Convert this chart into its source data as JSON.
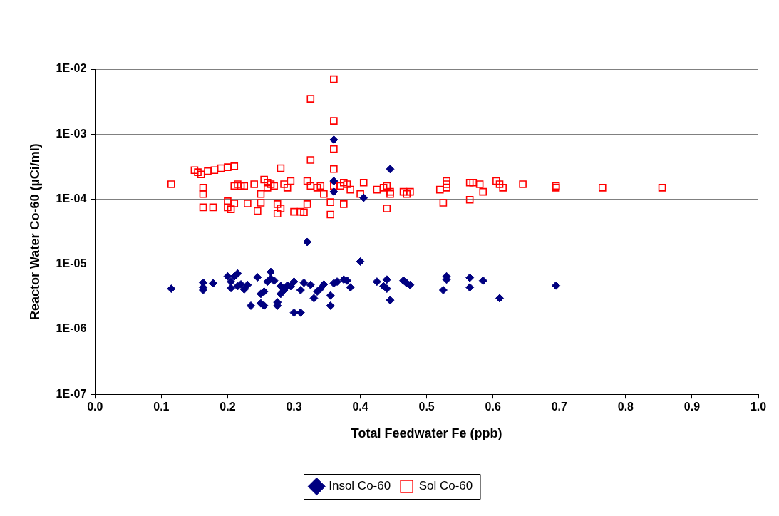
{
  "chart_data": {
    "type": "scatter",
    "xlabel": "Total Feedwater Fe (ppb)",
    "ylabel": "Reactor Water Co-60 (µCi/ml)",
    "log": "y",
    "grid": "y",
    "legend": "bottom",
    "xlim": [
      0,
      1
    ],
    "xticks": [
      {
        "value": 0,
        "label": "0.0"
      },
      {
        "value": 0.1,
        "label": "0.1"
      },
      {
        "value": 0.2,
        "label": "0.2"
      },
      {
        "value": 0.3,
        "label": "0.3"
      },
      {
        "value": 0.4,
        "label": "0.4"
      },
      {
        "value": 0.5,
        "label": "0.5"
      },
      {
        "value": 0.6,
        "label": "0.6"
      },
      {
        "value": 0.7,
        "label": "0.7"
      },
      {
        "value": 0.8,
        "label": "0.8"
      },
      {
        "value": 0.9,
        "label": "0.9"
      },
      {
        "value": 1,
        "label": "1.0"
      }
    ],
    "ylim": [
      1e-07,
      0.01
    ],
    "yticks": [
      {
        "value": 1e-07,
        "label": "1E-07"
      },
      {
        "value": 1e-06,
        "label": "1E-06"
      },
      {
        "value": 1e-05,
        "label": "1E-05"
      },
      {
        "value": 0.0001,
        "label": "1E-04"
      },
      {
        "value": 0.001,
        "label": "1E-03"
      },
      {
        "value": 0.01,
        "label": "1E-02"
      }
    ],
    "series": [
      {
        "name": "Insol Co-60",
        "color": "#000080",
        "marker": "diamond",
        "x": [
          0.115,
          0.163,
          0.163,
          0.163,
          0.178,
          0.2,
          0.205,
          0.205,
          0.21,
          0.215,
          0.215,
          0.22,
          0.225,
          0.23,
          0.235,
          0.245,
          0.25,
          0.25,
          0.255,
          0.255,
          0.26,
          0.265,
          0.265,
          0.27,
          0.275,
          0.275,
          0.28,
          0.28,
          0.285,
          0.29,
          0.295,
          0.3,
          0.3,
          0.31,
          0.31,
          0.315,
          0.32,
          0.325,
          0.33,
          0.335,
          0.34,
          0.345,
          0.355,
          0.355,
          0.36,
          0.36,
          0.36,
          0.36,
          0.365,
          0.375,
          0.38,
          0.385,
          0.405,
          0.4,
          0.425,
          0.435,
          0.44,
          0.44,
          0.445,
          0.445,
          0.465,
          0.47,
          0.475,
          0.525,
          0.53,
          0.53,
          0.565,
          0.565,
          0.585,
          0.61,
          0.695
        ],
        "values": [
          4.2e-06,
          5.2e-06,
          4.4e-06,
          4e-06,
          5.1e-06,
          6.5e-06,
          5.4e-06,
          4.3e-06,
          6.5e-06,
          7.2e-06,
          4.6e-06,
          4.9e-06,
          4.1e-06,
          4.8e-06,
          2.3e-06,
          6.3e-06,
          3.5e-06,
          2.5e-06,
          2.3e-06,
          3.8e-06,
          5.4e-06,
          7.6e-06,
          6e-06,
          5.6e-06,
          2.6e-06,
          2.3e-06,
          4.6e-06,
          3.5e-06,
          4e-06,
          4.7e-06,
          4.6e-06,
          5.4e-06,
          1.8e-06,
          1.8e-06,
          4e-06,
          5.2e-06,
          2.2e-05,
          4.8e-06,
          3e-06,
          3.8e-06,
          4.2e-06,
          4.9e-06,
          2.3e-06,
          3.3e-06,
          0.00082,
          0.00019,
          0.00013,
          5.1e-06,
          5.4e-06,
          5.8e-06,
          5.6e-06,
          4.4e-06,
          0.000105,
          1.1e-05,
          5.4e-06,
          4.6e-06,
          5.8e-06,
          4.2e-06,
          2.8e-06,
          0.00029,
          5.6e-06,
          5.1e-06,
          4.8e-06,
          4e-06,
          6.5e-06,
          5.8e-06,
          6.2e-06,
          4.4e-06,
          5.6e-06,
          3e-06,
          4.7e-06
        ]
      },
      {
        "name": "Sol Co-60",
        "color": "#ff0000",
        "marker": "square",
        "x": [
          0.115,
          0.15,
          0.155,
          0.16,
          0.17,
          0.18,
          0.19,
          0.2,
          0.21,
          0.163,
          0.163,
          0.163,
          0.178,
          0.2,
          0.2,
          0.205,
          0.21,
          0.215,
          0.22,
          0.225,
          0.21,
          0.23,
          0.24,
          0.25,
          0.255,
          0.26,
          0.26,
          0.245,
          0.25,
          0.265,
          0.27,
          0.275,
          0.275,
          0.28,
          0.28,
          0.285,
          0.295,
          0.29,
          0.3,
          0.31,
          0.315,
          0.32,
          0.32,
          0.325,
          0.325,
          0.325,
          0.335,
          0.34,
          0.345,
          0.355,
          0.355,
          0.36,
          0.36,
          0.36,
          0.36,
          0.36,
          0.37,
          0.375,
          0.375,
          0.38,
          0.385,
          0.4,
          0.405,
          0.425,
          0.435,
          0.44,
          0.44,
          0.445,
          0.445,
          0.465,
          0.47,
          0.475,
          0.52,
          0.525,
          0.53,
          0.53,
          0.53,
          0.565,
          0.565,
          0.57,
          0.58,
          0.585,
          0.605,
          0.61,
          0.615,
          0.645,
          0.695,
          0.695,
          0.765,
          0.855
        ],
        "values": [
          0.00017,
          0.00028,
          0.00026,
          0.00024,
          0.00027,
          0.00028,
          0.0003,
          0.00031,
          0.00032,
          0.00015,
          0.00012,
          7.5e-05,
          7.5e-05,
          9.3e-05,
          7.5e-05,
          7e-05,
          0.00016,
          0.00017,
          0.00016,
          0.00016,
          8.6e-05,
          8.6e-05,
          0.00017,
          0.00012,
          0.0002,
          0.00018,
          0.00015,
          6.6e-05,
          8.8e-05,
          0.00017,
          0.00016,
          8.4e-05,
          6e-05,
          7.2e-05,
          0.0003,
          0.00017,
          0.00019,
          0.00015,
          6.4e-05,
          6.4e-05,
          6.3e-05,
          8.4e-05,
          0.00019,
          0.00016,
          0.0004,
          0.0035,
          0.00015,
          0.00016,
          0.00012,
          9e-05,
          5.8e-05,
          0.007,
          0.0016,
          0.00059,
          0.00029,
          0.00016,
          0.00016,
          0.00018,
          8.4e-05,
          0.00017,
          0.00014,
          0.00012,
          0.00018,
          0.00014,
          0.00015,
          7.2e-05,
          0.00016,
          0.00012,
          0.00013,
          0.00013,
          0.00012,
          0.00013,
          0.00014,
          8.8e-05,
          0.00019,
          0.00017,
          0.00015,
          9.8e-05,
          0.00018,
          0.00018,
          0.00017,
          0.00013,
          0.00019,
          0.00017,
          0.00015,
          0.00017,
          0.00016,
          0.00015,
          0.00015,
          0.00015
        ]
      }
    ]
  }
}
